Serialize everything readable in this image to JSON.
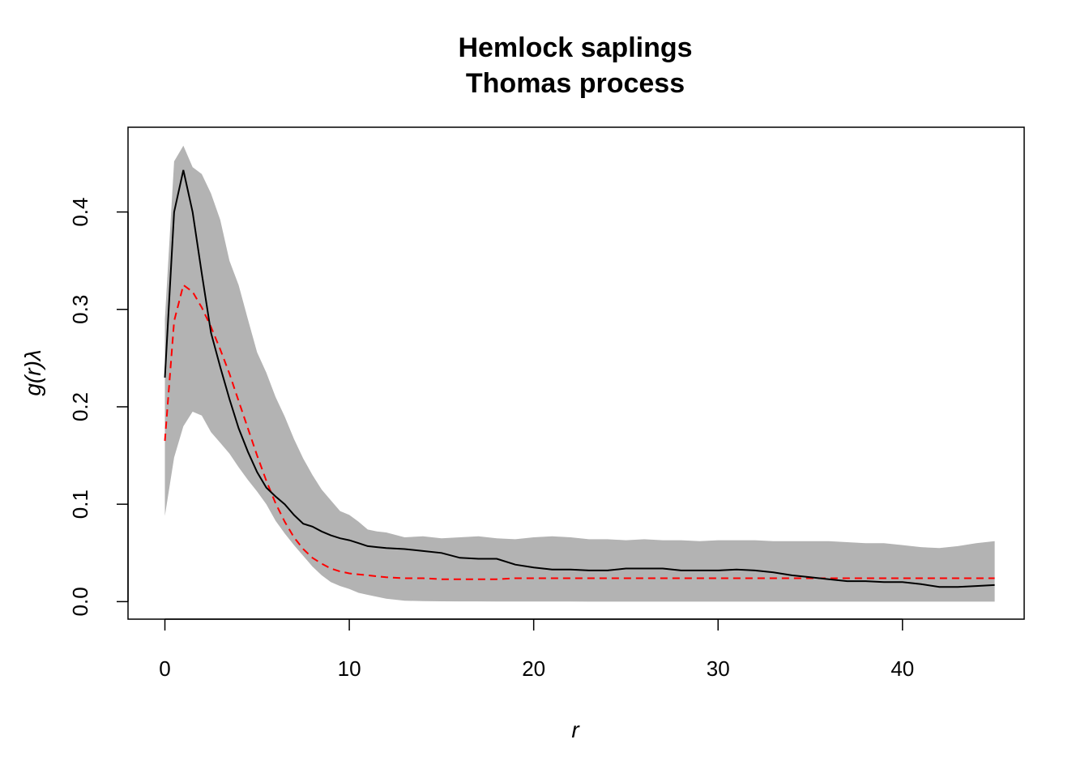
{
  "chart_data": {
    "type": "line",
    "title": "Hemlock saplings",
    "subtitle": "Thomas process",
    "xlabel": "r",
    "ylabel": "g(r)λ",
    "xlim": [
      -2,
      46.6
    ],
    "ylim": [
      -0.018,
      0.487
    ],
    "xticks": [
      "0",
      "10",
      "20",
      "30",
      "40"
    ],
    "yticks": [
      "0.0",
      "0.1",
      "0.2",
      "0.3",
      "0.4"
    ],
    "colors": {
      "envelope": "#b3b3b3",
      "observed": "#000000",
      "theoretical": "#ff0000"
    },
    "x": [
      0,
      0.5,
      1,
      1.5,
      2,
      2.5,
      3,
      3.5,
      4,
      4.5,
      5,
      5.5,
      6,
      6.5,
      7,
      7.5,
      8,
      8.5,
      9,
      9.5,
      10,
      10.5,
      11,
      11.5,
      12,
      13,
      14,
      15,
      16,
      17,
      18,
      19,
      20,
      21,
      22,
      23,
      24,
      25,
      26,
      27,
      28,
      29,
      30,
      31,
      32,
      33,
      34,
      35,
      36,
      37,
      38,
      39,
      40,
      41,
      42,
      43,
      44,
      45
    ],
    "series": [
      {
        "name": "",
        "role": "envelope-upper",
        "values": [
          0.29,
          0.452,
          0.468,
          0.446,
          0.439,
          0.419,
          0.392,
          0.35,
          0.325,
          0.29,
          0.256,
          0.235,
          0.21,
          0.19,
          0.167,
          0.147,
          0.13,
          0.115,
          0.104,
          0.093,
          0.089,
          0.082,
          0.074,
          0.072,
          0.071,
          0.066,
          0.067,
          0.065,
          0.066,
          0.067,
          0.065,
          0.064,
          0.066,
          0.067,
          0.066,
          0.064,
          0.064,
          0.063,
          0.064,
          0.063,
          0.063,
          0.062,
          0.063,
          0.063,
          0.063,
          0.062,
          0.062,
          0.062,
          0.062,
          0.061,
          0.06,
          0.06,
          0.058,
          0.056,
          0.055,
          0.057,
          0.06,
          0.062
        ]
      },
      {
        "name": "",
        "role": "envelope-lower",
        "values": [
          0.088,
          0.148,
          0.18,
          0.195,
          0.191,
          0.174,
          0.163,
          0.152,
          0.138,
          0.125,
          0.113,
          0.1,
          0.083,
          0.07,
          0.058,
          0.047,
          0.036,
          0.027,
          0.02,
          0.016,
          0.013,
          0.009,
          0.007,
          0.005,
          0.003,
          0.001,
          0.0005,
          0.0003,
          0.0002,
          0.0002,
          0.0001,
          0.0001,
          0.0001,
          0.0001,
          0.0001,
          0,
          0,
          0,
          0,
          0,
          0,
          0,
          0,
          0,
          0,
          0,
          0,
          0,
          0,
          0,
          0,
          0,
          0,
          0,
          0,
          0,
          0,
          0
        ]
      },
      {
        "name": "",
        "role": "observed",
        "values": [
          0.23,
          0.4,
          0.443,
          0.4,
          0.337,
          0.276,
          0.241,
          0.208,
          0.178,
          0.154,
          0.133,
          0.117,
          0.108,
          0.1,
          0.089,
          0.08,
          0.077,
          0.072,
          0.068,
          0.065,
          0.063,
          0.06,
          0.057,
          0.056,
          0.055,
          0.054,
          0.052,
          0.05,
          0.045,
          0.044,
          0.044,
          0.038,
          0.035,
          0.033,
          0.033,
          0.032,
          0.032,
          0.034,
          0.034,
          0.034,
          0.032,
          0.032,
          0.032,
          0.033,
          0.032,
          0.03,
          0.027,
          0.025,
          0.023,
          0.021,
          0.021,
          0.02,
          0.02,
          0.018,
          0.015,
          0.015,
          0.016,
          0.017
        ]
      },
      {
        "name": "",
        "role": "theoretical",
        "values": [
          0.165,
          0.288,
          0.325,
          0.318,
          0.302,
          0.282,
          0.259,
          0.234,
          0.206,
          0.178,
          0.15,
          0.124,
          0.101,
          0.082,
          0.066,
          0.054,
          0.045,
          0.039,
          0.034,
          0.031,
          0.029,
          0.028,
          0.027,
          0.026,
          0.025,
          0.024,
          0.024,
          0.023,
          0.023,
          0.023,
          0.023,
          0.024,
          0.024,
          0.024,
          0.024,
          0.024,
          0.024,
          0.024,
          0.024,
          0.024,
          0.024,
          0.024,
          0.024,
          0.024,
          0.024,
          0.024,
          0.024,
          0.024,
          0.024,
          0.024,
          0.024,
          0.024,
          0.024,
          0.024,
          0.024,
          0.024,
          0.024,
          0.024
        ]
      }
    ]
  }
}
